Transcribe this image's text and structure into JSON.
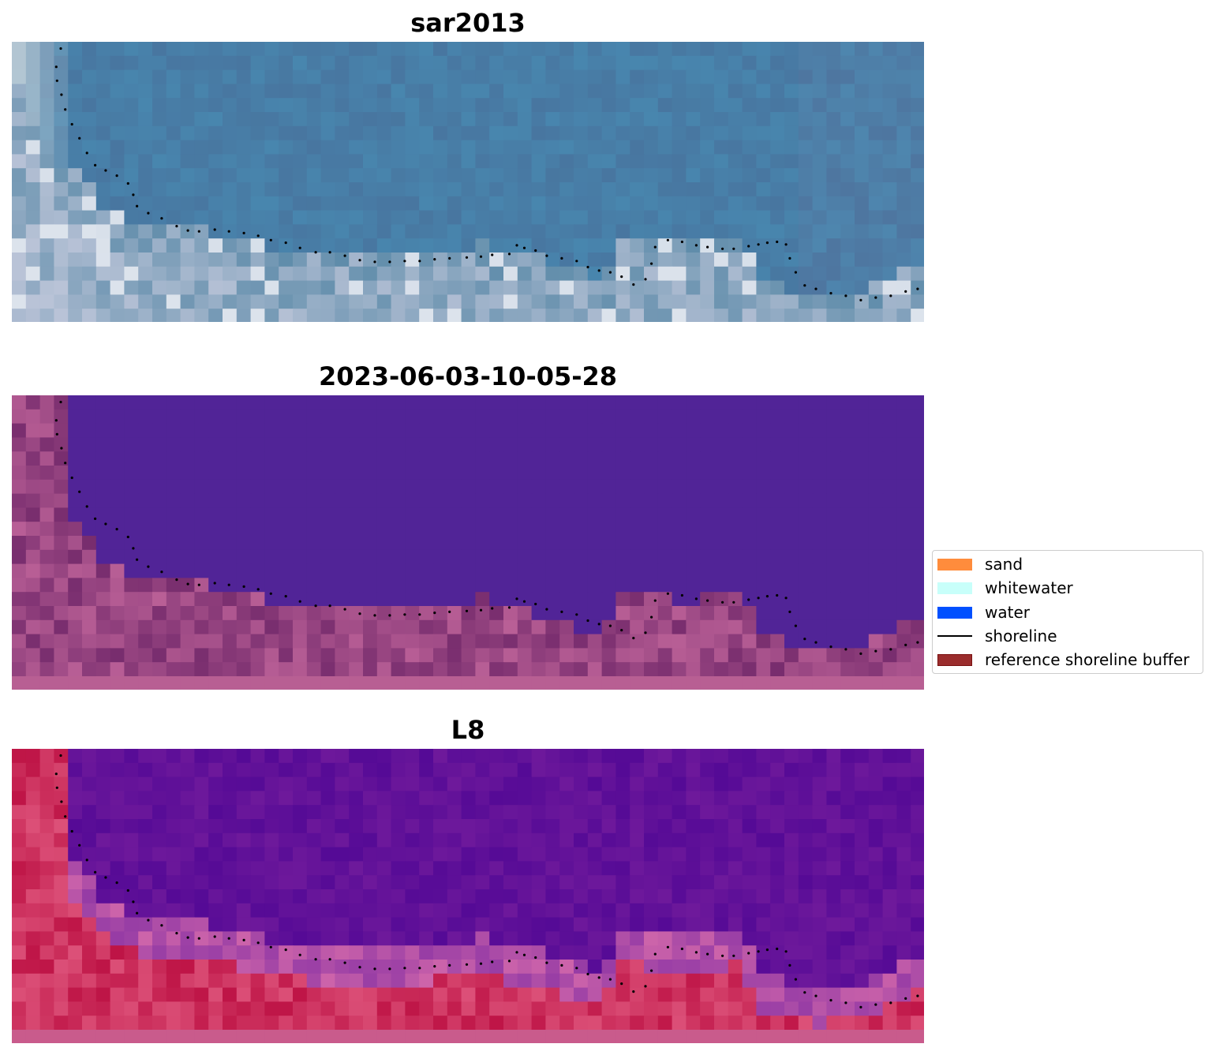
{
  "panels": [
    {
      "title": "sar2013",
      "kind": "rgb"
    },
    {
      "title": "2023-06-03-10-05-28",
      "kind": "classified"
    },
    {
      "title": "L8",
      "kind": "index"
    }
  ],
  "legend": {
    "items": [
      {
        "label": "sand",
        "color": "#ff8c3c",
        "type": "patch"
      },
      {
        "label": "whitewater",
        "color": "#c8fffa",
        "type": "patch"
      },
      {
        "label": "water",
        "color": "#0050ff",
        "type": "patch"
      },
      {
        "label": "shoreline",
        "color": "#000000",
        "type": "line"
      },
      {
        "label": "reference shoreline buffer",
        "color": "#9b2d2d",
        "type": "patch"
      }
    ]
  },
  "shoreline": {
    "description_colors": {
      "dots": "#000000"
    },
    "points": [
      [
        0,
        -0.5
      ],
      [
        -0.6,
        1.6
      ],
      [
        -0.5,
        3.2
      ],
      [
        0.1,
        4.8
      ],
      [
        0.6,
        6.5
      ],
      [
        1.5,
        8.2
      ],
      [
        2.5,
        9.8
      ],
      [
        3.5,
        11.5
      ],
      [
        4.6,
        12.9
      ],
      [
        6,
        13.5
      ],
      [
        7.5,
        14.1
      ],
      [
        9,
        15
      ],
      [
        9.7,
        16.3
      ],
      [
        10.2,
        17.6
      ],
      [
        11.7,
        18.4
      ],
      [
        13.5,
        19
      ],
      [
        15.5,
        19.9
      ],
      [
        17,
        20.4
      ],
      [
        18.5,
        20.5
      ],
      [
        20.6,
        20.3
      ],
      [
        22.5,
        20.5
      ],
      [
        24.5,
        20.7
      ],
      [
        26.4,
        21
      ],
      [
        28.1,
        21.5
      ],
      [
        30.1,
        21.8
      ],
      [
        32,
        22.4
      ],
      [
        34.1,
        22.9
      ],
      [
        36,
        22.9
      ],
      [
        38,
        23.3
      ],
      [
        40,
        23.8
      ],
      [
        42,
        24
      ],
      [
        44,
        24
      ],
      [
        46,
        23.9
      ],
      [
        48,
        23.9
      ],
      [
        50,
        23.7
      ],
      [
        52,
        23.6
      ],
      [
        54.3,
        23.5
      ],
      [
        56.2,
        23.4
      ],
      [
        57.7,
        23.2
      ],
      [
        60,
        23.1
      ],
      [
        61,
        22.1
      ],
      [
        62,
        22.4
      ],
      [
        63.5,
        22.7
      ],
      [
        65,
        23.3
      ],
      [
        67,
        23.6
      ],
      [
        69,
        23.9
      ],
      [
        70.5,
        24.6
      ],
      [
        72,
        25
      ],
      [
        73.5,
        25.2
      ],
      [
        75,
        25.7
      ],
      [
        76.6,
        26.6
      ],
      [
        78.2,
        26
      ],
      [
        79,
        24.2
      ],
      [
        79.5,
        22.3
      ],
      [
        81.2,
        21.5
      ],
      [
        83.1,
        21.7
      ],
      [
        85,
        22.1
      ],
      [
        86.5,
        22.3
      ],
      [
        88.5,
        22.5
      ],
      [
        90,
        22.5
      ],
      [
        92,
        22.2
      ],
      [
        93.3,
        22
      ],
      [
        94.5,
        21.8
      ],
      [
        95.8,
        21.7
      ],
      [
        97,
        22
      ],
      [
        97.5,
        23.6
      ],
      [
        98.3,
        25.2
      ],
      [
        99.5,
        26.7
      ],
      [
        101,
        27.1
      ],
      [
        103,
        27.6
      ],
      [
        105,
        27.9
      ],
      [
        107,
        28.4
      ],
      [
        109,
        28.1
      ],
      [
        111,
        27.9
      ],
      [
        113,
        27.4
      ],
      [
        114.6,
        27.1
      ],
      [
        116.2,
        26.5
      ],
      [
        118,
        25.6
      ],
      [
        119.5,
        25
      ],
      [
        120.6,
        24.3
      ]
    ]
  }
}
